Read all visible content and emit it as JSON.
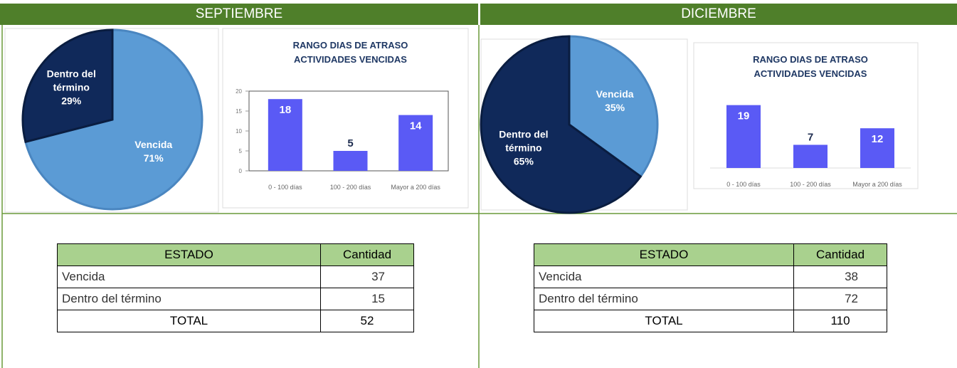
{
  "panels": [
    {
      "header": "SEPTIEMBRE",
      "pie": {
        "type": "pie",
        "categories": [
          "Vencida",
          "Dentro del término"
        ],
        "values": [
          71,
          29
        ],
        "value_labels": [
          "71%",
          "29%"
        ],
        "colors": [
          "#5b9bd5",
          "#10295a"
        ]
      },
      "bar": {
        "type": "bar",
        "title": [
          "RANGO DIAS DE ATRASO",
          "ACTIVIDADES VENCIDAS"
        ],
        "categories": [
          "0 - 100 días",
          "100 - 200 días",
          "Mayor a 200 días"
        ],
        "values": [
          18,
          5,
          14
        ],
        "color": "#5a5af5",
        "ylim": [
          0,
          20
        ],
        "yticks": [
          0,
          5,
          10,
          15,
          20
        ]
      },
      "table": {
        "header": [
          "ESTADO",
          "Cantidad"
        ],
        "rows": [
          [
            "Vencida",
            37
          ],
          [
            "Dentro del término",
            15
          ]
        ],
        "total": [
          "TOTAL",
          52
        ]
      }
    },
    {
      "header": "DICIEMBRE",
      "pie": {
        "type": "pie",
        "categories": [
          "Vencida",
          "Dentro del término"
        ],
        "values": [
          35,
          65
        ],
        "value_labels": [
          "35%",
          "65%"
        ],
        "colors": [
          "#5b9bd5",
          "#10295a"
        ]
      },
      "bar": {
        "type": "bar",
        "title": [
          "RANGO DIAS DE ATRASO",
          "ACTIVIDADES VENCIDAS"
        ],
        "categories": [
          "0 - 100 días",
          "100 - 200 días",
          "Mayor a 200 días"
        ],
        "values": [
          19,
          7,
          12
        ],
        "color": "#5a5af5",
        "ylim": [
          0,
          20
        ]
      },
      "table": {
        "header": [
          "ESTADO",
          "Cantidad"
        ],
        "rows": [
          [
            "Vencida",
            38
          ],
          [
            "Dentro del término",
            72
          ]
        ],
        "total": [
          "TOTAL",
          110
        ]
      }
    }
  ]
}
